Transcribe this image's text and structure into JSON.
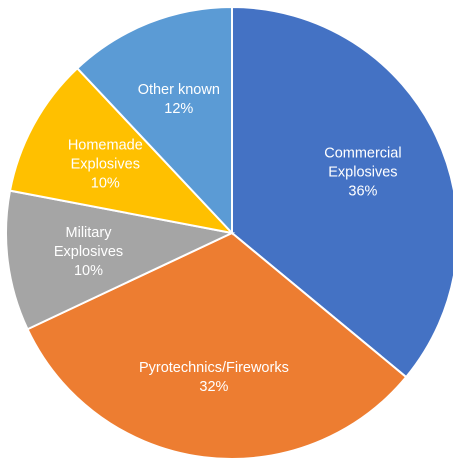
{
  "chart_data": {
    "type": "pie",
    "title": "",
    "start_angle_deg": 0,
    "direction": "clockwise",
    "legend": "none",
    "slices": [
      {
        "label_lines": [
          "Commercial",
          "Explosives"
        ],
        "value": 36,
        "value_label": "36%",
        "color": "#4472C4"
      },
      {
        "label_lines": [
          "Pyrotechnics/Fireworks"
        ],
        "value": 32,
        "value_label": "32%",
        "color": "#ED7D31"
      },
      {
        "label_lines": [
          "Military",
          "Explosives"
        ],
        "value": 10,
        "value_label": "10%",
        "color": "#A5A5A5"
      },
      {
        "label_lines": [
          "Homemade",
          "Explosives"
        ],
        "value": 10,
        "value_label": "10%",
        "color": "#FFC000"
      },
      {
        "label_lines": [
          "Other known"
        ],
        "value": 12,
        "value_label": "12%",
        "color": "#5B9BD5"
      }
    ]
  }
}
